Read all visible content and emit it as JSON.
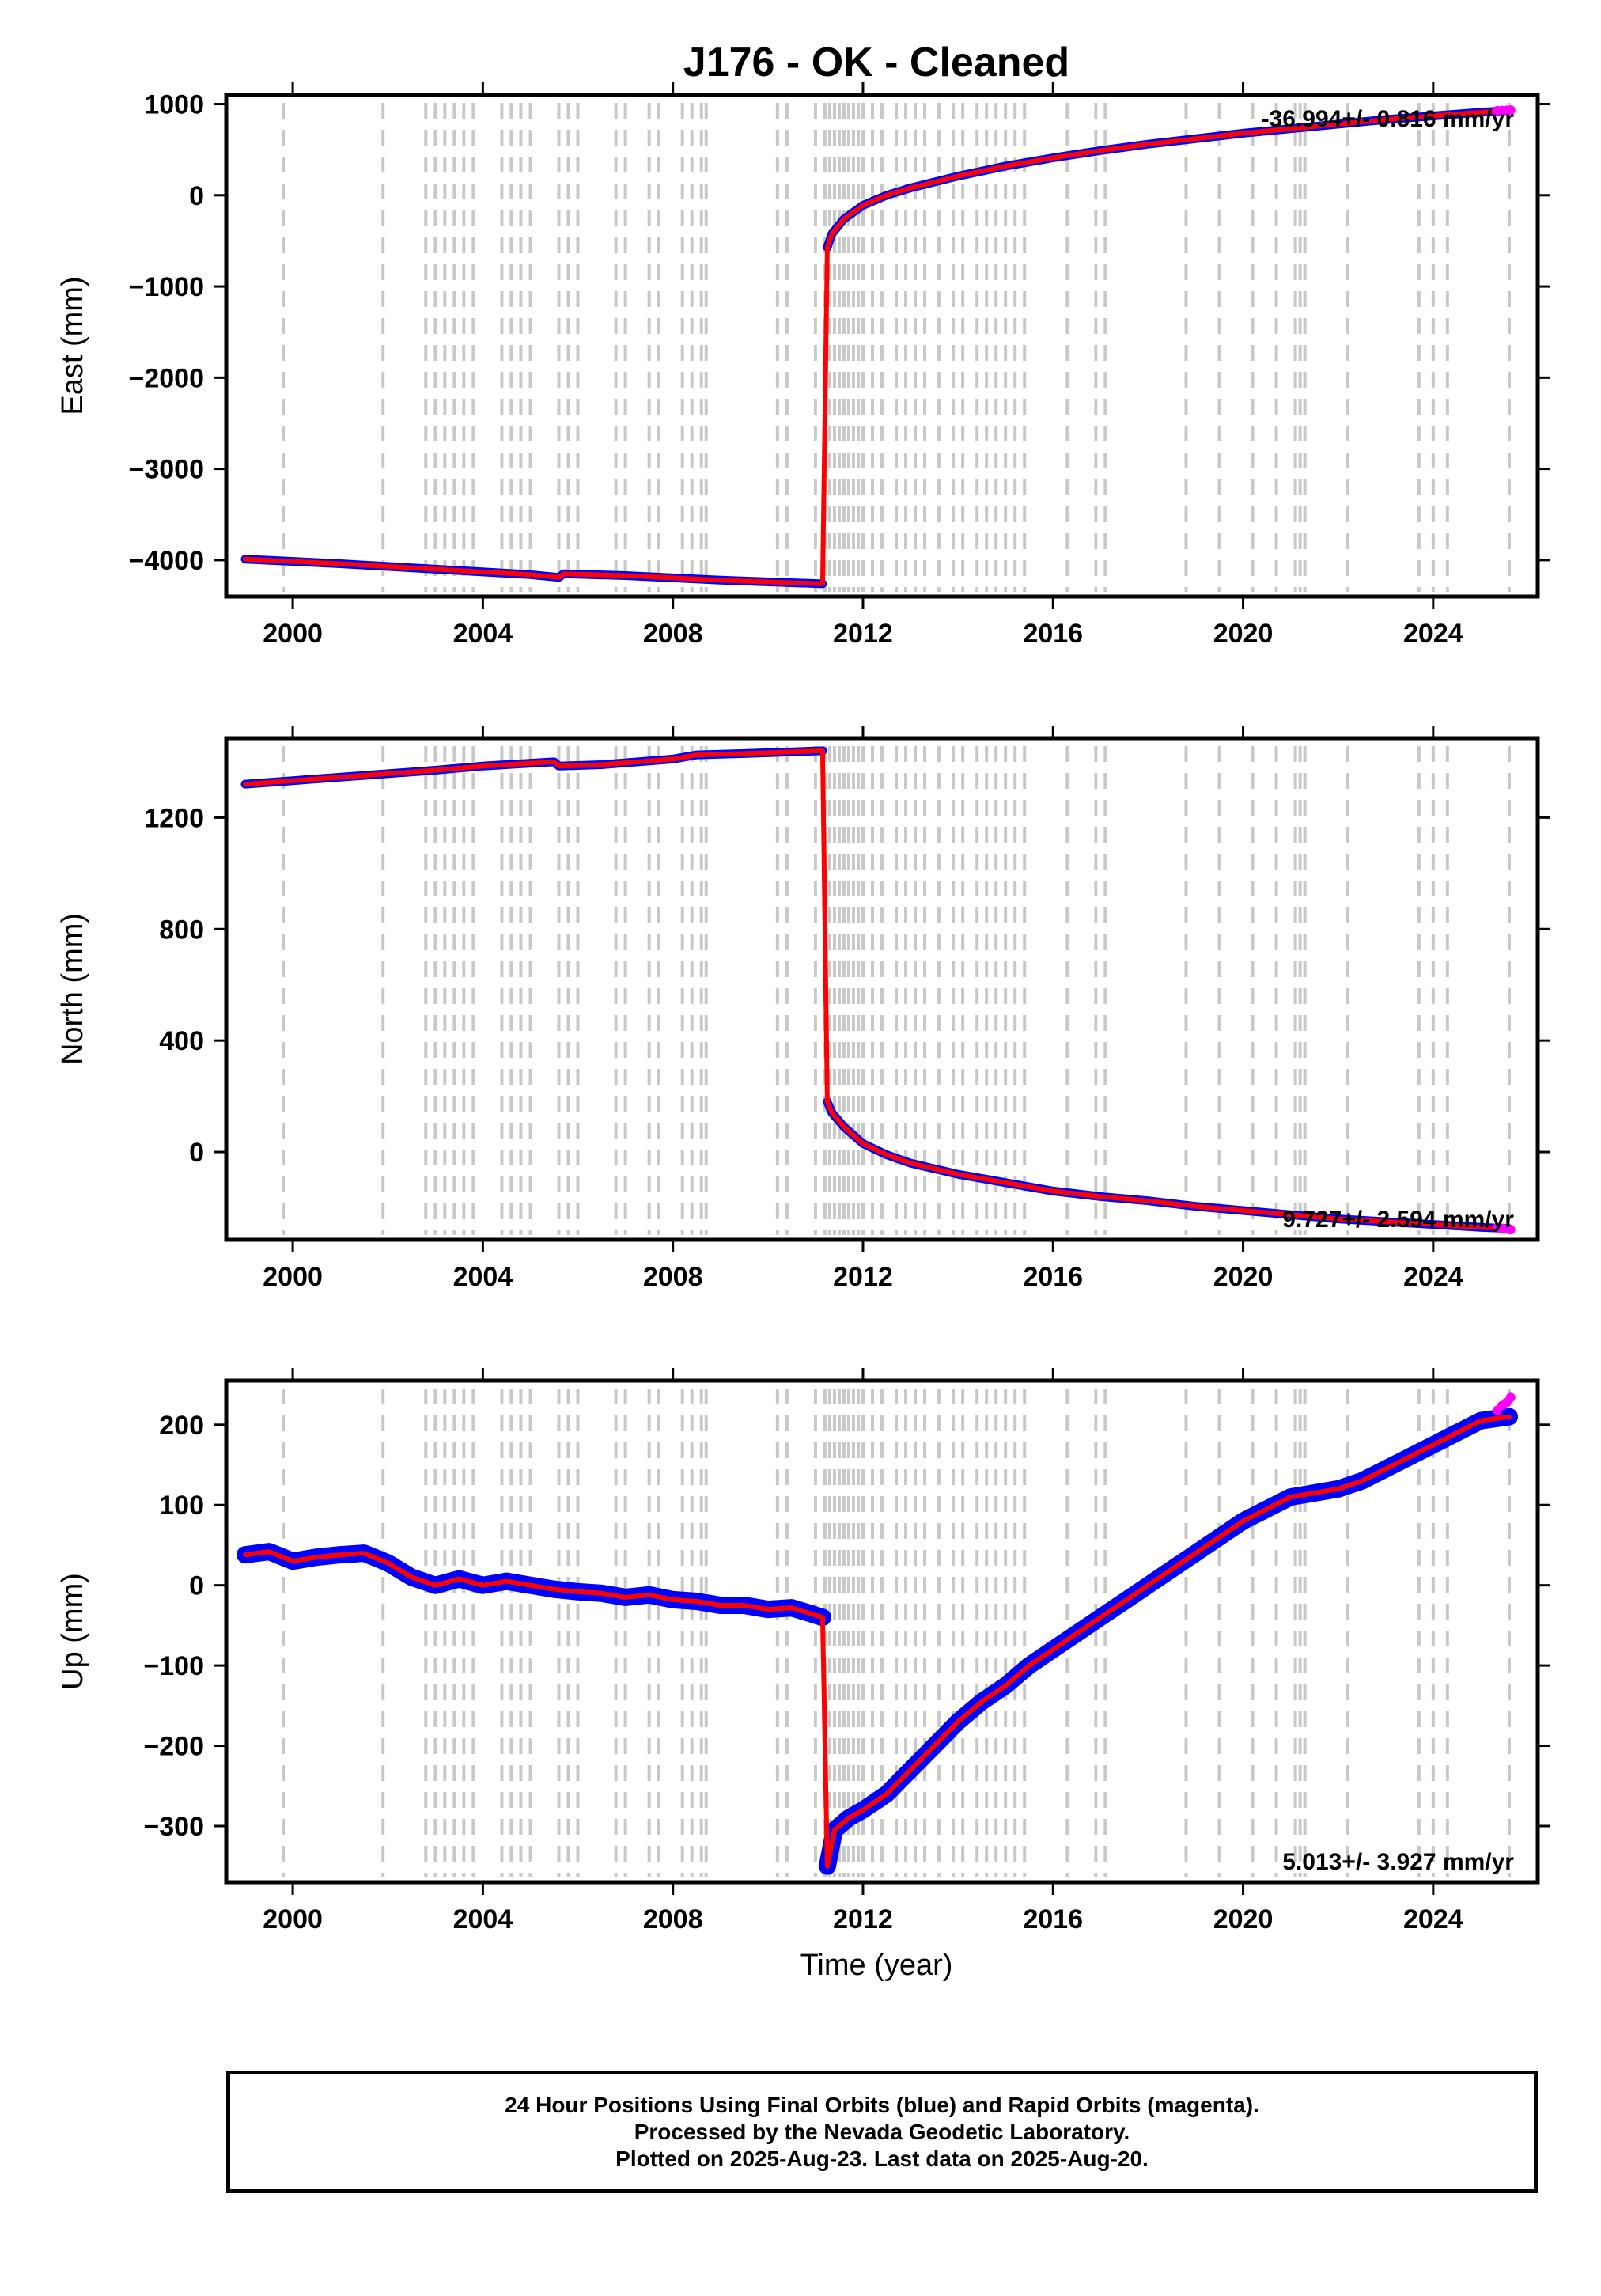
{
  "title": "J176  - OK - Cleaned",
  "colors": {
    "final_orbits": "#0000ff",
    "rapid_orbits": "#ff00ff",
    "fit": "#ff0000",
    "steps": "#c8c8c8"
  },
  "x_axis": {
    "label": "Time (year)",
    "ticks": [
      2000,
      2004,
      2008,
      2012,
      2016,
      2020,
      2024
    ],
    "range": [
      1998.6,
      2026.2
    ]
  },
  "step_epochs": [
    1999.8,
    2001.9,
    2002.8,
    2003.0,
    2003.2,
    2003.4,
    2003.6,
    2003.8,
    2004.4,
    2004.6,
    2004.8,
    2005.0,
    2005.6,
    2005.8,
    2006.0,
    2006.8,
    2007.0,
    2007.5,
    2007.7,
    2008.2,
    2008.4,
    2008.6,
    2008.7,
    2010.2,
    2010.4,
    2011.0,
    2011.2,
    2011.3,
    2011.4,
    2011.5,
    2011.6,
    2011.7,
    2011.8,
    2011.9,
    2012.0,
    2012.2,
    2012.4,
    2012.7,
    2012.9,
    2013.1,
    2013.3,
    2013.6,
    2013.9,
    2014.1,
    2014.4,
    2014.6,
    2014.8,
    2015.0,
    2015.2,
    2015.4,
    2016.3,
    2016.9,
    2017.1,
    2018.8,
    2019.5,
    2020.2,
    2020.7,
    2021.1,
    2021.2,
    2021.3,
    2022.2,
    2023.7,
    2024.0,
    2024.3,
    2025.6
  ],
  "chart_data": [
    {
      "type": "scatter",
      "name": "east",
      "ylabel": "East (mm)",
      "ylim": [
        -4400,
        1100
      ],
      "yticks": [
        1000,
        0,
        -1000,
        -2000,
        -3000,
        -4000
      ],
      "rate_label": "-36.994+/- 0.816 mm/yr",
      "segments": [
        {
          "x": [
            1999.0,
            2001.0,
            2003.0,
            2005.0,
            2005.6,
            2005.7,
            2007.0,
            2009.0,
            2011.15
          ],
          "y": [
            -3990,
            -4040,
            -4100,
            -4160,
            -4190,
            -4150,
            -4170,
            -4220,
            -4260
          ]
        },
        {
          "x": [
            2011.25,
            2011.35,
            2011.6,
            2012.0,
            2012.5,
            2013.0,
            2014.0,
            2015.0,
            2016.0,
            2017.0,
            2018.0,
            2019.0,
            2020.0,
            2021.0,
            2022.0,
            2023.0,
            2024.0,
            2025.0,
            2025.6
          ],
          "y": [
            -570,
            -420,
            -260,
            -110,
            0,
            80,
            210,
            320,
            410,
            490,
            560,
            620,
            680,
            730,
            780,
            830,
            870,
            910,
            930
          ]
        }
      ],
      "rapid": {
        "x": [
          2025.35,
          2025.45,
          2025.55,
          2025.63
        ],
        "y": [
          928,
          930,
          932,
          934
        ]
      }
    },
    {
      "type": "scatter",
      "name": "north",
      "ylabel": "North (mm)",
      "ylim": [
        -315,
        1485
      ],
      "yticks": [
        1200,
        800,
        400,
        0
      ],
      "rate_label": "9.727+/- 2.594 mm/yr",
      "segments": [
        {
          "x": [
            1999.0,
            2001.0,
            2003.0,
            2004.0,
            2005.5,
            2005.6,
            2006.5,
            2008.0,
            2008.5,
            2009.5,
            2011.15
          ],
          "y": [
            1320,
            1345,
            1370,
            1385,
            1400,
            1385,
            1390,
            1410,
            1425,
            1430,
            1440
          ]
        },
        {
          "x": [
            2011.25,
            2011.35,
            2011.6,
            2012.0,
            2012.5,
            2013.0,
            2014.0,
            2015.0,
            2016.0,
            2017.0,
            2018.0,
            2019.0,
            2020.0,
            2021.0,
            2022.0,
            2023.0,
            2024.0,
            2025.0,
            2025.6
          ],
          "y": [
            180,
            140,
            90,
            30,
            -10,
            -40,
            -80,
            -110,
            -140,
            -160,
            -175,
            -195,
            -210,
            -225,
            -240,
            -250,
            -260,
            -270,
            -275
          ]
        }
      ],
      "rapid": {
        "x": [
          2025.35,
          2025.45,
          2025.55,
          2025.63
        ],
        "y": [
          -272,
          -274,
          -276,
          -278
        ]
      }
    },
    {
      "type": "scatter",
      "name": "up",
      "ylabel": "Up (mm)",
      "xlabel": "Time (year)",
      "ylim": [
        -370,
        255
      ],
      "yticks": [
        200,
        100,
        0,
        -100,
        -200,
        -300
      ],
      "rate_label": "5.013+/- 3.927 mm/yr",
      "segments": [
        {
          "x": [
            1999.0,
            1999.5,
            2000.0,
            2000.5,
            2001.0,
            2001.5,
            2002.0,
            2002.5,
            2003.0,
            2003.5,
            2004.0,
            2004.5,
            2005.0,
            2005.5,
            2006.0,
            2006.5,
            2007.0,
            2007.5,
            2008.0,
            2008.5,
            2009.0,
            2009.5,
            2010.0,
            2010.5,
            2011.15
          ],
          "y": [
            38,
            42,
            30,
            35,
            38,
            40,
            28,
            10,
            0,
            8,
            0,
            5,
            0,
            -5,
            -8,
            -10,
            -15,
            -12,
            -18,
            -20,
            -25,
            -25,
            -30,
            -28,
            -40
          ]
        },
        {
          "x": [
            2011.25,
            2011.4,
            2011.7,
            2012.0,
            2012.5,
            2013.0,
            2013.5,
            2014.0,
            2014.5,
            2015.0,
            2015.5,
            2016.0,
            2016.5,
            2017.0,
            2017.5,
            2018.0,
            2018.5,
            2019.0,
            2019.5,
            2020.0,
            2020.5,
            2021.0,
            2021.5,
            2022.0,
            2022.5,
            2023.0,
            2023.5,
            2024.0,
            2024.5,
            2025.0,
            2025.6
          ],
          "y": [
            -350,
            -305,
            -290,
            -280,
            -260,
            -230,
            -200,
            -170,
            -145,
            -125,
            -100,
            -80,
            -60,
            -40,
            -20,
            0,
            20,
            40,
            60,
            80,
            95,
            110,
            115,
            120,
            130,
            145,
            160,
            175,
            190,
            205,
            210
          ]
        }
      ],
      "rapid": {
        "x": [
          2025.35,
          2025.45,
          2025.55,
          2025.63
        ],
        "y": [
          218,
          224,
          228,
          234
        ]
      }
    }
  ],
  "footer": {
    "line1": "24 Hour Positions Using Final Orbits (blue) and Rapid Orbits (magenta).",
    "line2": "Processed by the Nevada Geodetic Laboratory.",
    "line3": "Plotted on 2025-Aug-23. Last data on 2025-Aug-20."
  }
}
